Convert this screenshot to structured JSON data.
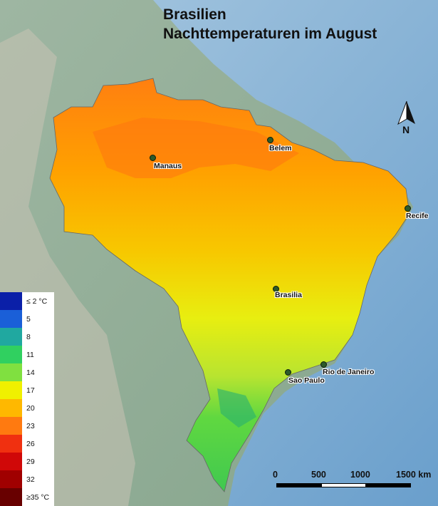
{
  "title": {
    "line1": "Brasilien",
    "line2": "Nachttemperaturen im August"
  },
  "cities": [
    {
      "name": "Manaus",
      "id": "manaus"
    },
    {
      "name": "Belem",
      "id": "belem"
    },
    {
      "name": "Recife",
      "id": "recife"
    },
    {
      "name": "Brasilia",
      "id": "brasilia"
    },
    {
      "name": "Rio de Janeiro",
      "id": "rio"
    },
    {
      "name": "Sao Paulo",
      "id": "saopaulo"
    }
  ],
  "legend": {
    "items": [
      {
        "label": "≤ 2 °C",
        "color": "#0a1fa8"
      },
      {
        "label": "5",
        "color": "#1a5fd8"
      },
      {
        "label": "8",
        "color": "#20a8a0"
      },
      {
        "label": "11",
        "color": "#30d060"
      },
      {
        "label": "14",
        "color": "#80e040"
      },
      {
        "label": "17",
        "color": "#f0f000"
      },
      {
        "label": "20",
        "color": "#ffb800"
      },
      {
        "label": "23",
        "color": "#ff7a10"
      },
      {
        "label": "26",
        "color": "#f03010"
      },
      {
        "label": "29",
        "color": "#d00808"
      },
      {
        "label": "32",
        "color": "#a00000"
      },
      {
        "label": "≥35 °C",
        "color": "#680000"
      }
    ]
  },
  "compass": {
    "label": "N"
  },
  "scale": {
    "labels": [
      "0",
      "500",
      "1000",
      "1500 km"
    ]
  },
  "colors": {
    "ocean": "#86b3d6",
    "land": "#8fa996",
    "hot": "#ff8a10",
    "warm": "#ffb000",
    "mild": "#e8ec10",
    "cool": "#60d840"
  }
}
